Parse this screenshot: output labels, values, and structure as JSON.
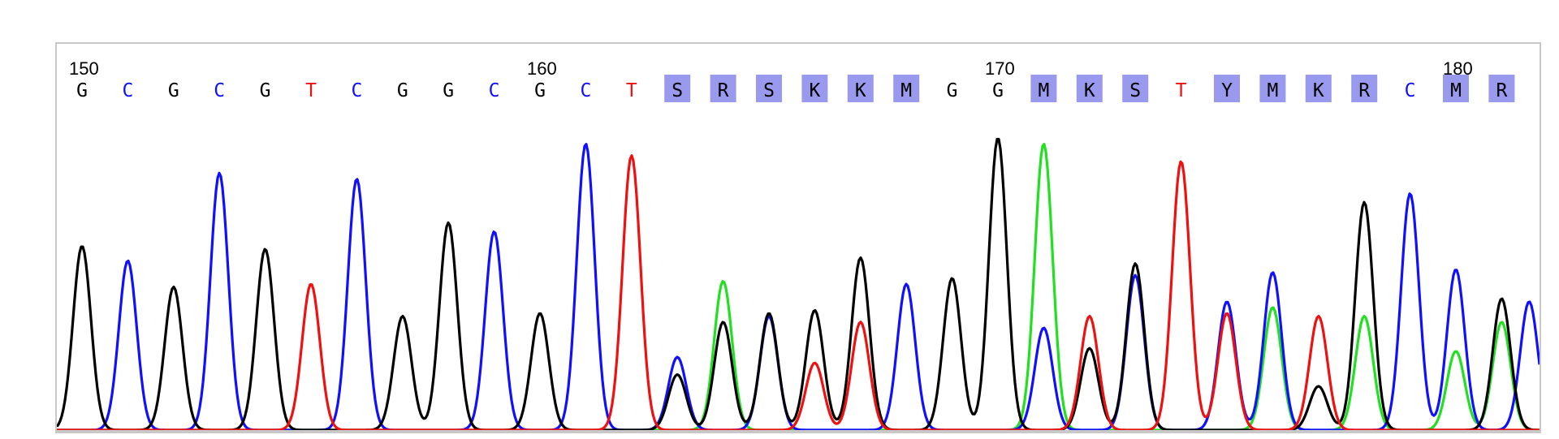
{
  "colors": {
    "A": "#20e020",
    "C": "#1010ff",
    "G": "#000000",
    "T": "#ee1111",
    "ambiguous_text": "#000000",
    "ambiguous_highlight": "#9999ee",
    "frame": "#c8c8c8"
  },
  "chart_data": {
    "type": "line",
    "title": "",
    "xlabel": "",
    "ylabel": "",
    "position_labels": [
      {
        "pos": 150,
        "text": "150"
      },
      {
        "pos": 160,
        "text": "160"
      },
      {
        "pos": 170,
        "text": "170"
      },
      {
        "pos": 180,
        "text": "180"
      }
    ],
    "sequence": [
      {
        "base": "G",
        "pos": 150,
        "ambiguous": false
      },
      {
        "base": "C",
        "pos": 151,
        "ambiguous": false
      },
      {
        "base": "G",
        "pos": 152,
        "ambiguous": false
      },
      {
        "base": "C",
        "pos": 153,
        "ambiguous": false
      },
      {
        "base": "G",
        "pos": 154,
        "ambiguous": false
      },
      {
        "base": "T",
        "pos": 155,
        "ambiguous": false
      },
      {
        "base": "C",
        "pos": 156,
        "ambiguous": false
      },
      {
        "base": "G",
        "pos": 157,
        "ambiguous": false
      },
      {
        "base": "G",
        "pos": 158,
        "ambiguous": false
      },
      {
        "base": "C",
        "pos": 159,
        "ambiguous": false
      },
      {
        "base": "G",
        "pos": 160,
        "ambiguous": false
      },
      {
        "base": "C",
        "pos": 161,
        "ambiguous": false
      },
      {
        "base": "T",
        "pos": 162,
        "ambiguous": false
      },
      {
        "base": "S",
        "pos": 163,
        "ambiguous": true
      },
      {
        "base": "R",
        "pos": 164,
        "ambiguous": true
      },
      {
        "base": "S",
        "pos": 165,
        "ambiguous": true
      },
      {
        "base": "K",
        "pos": 166,
        "ambiguous": true
      },
      {
        "base": "K",
        "pos": 167,
        "ambiguous": true
      },
      {
        "base": "M",
        "pos": 168,
        "ambiguous": true
      },
      {
        "base": "G",
        "pos": 169,
        "ambiguous": false
      },
      {
        "base": "G",
        "pos": 170,
        "ambiguous": false
      },
      {
        "base": "M",
        "pos": 171,
        "ambiguous": true
      },
      {
        "base": "K",
        "pos": 172,
        "ambiguous": true
      },
      {
        "base": "S",
        "pos": 173,
        "ambiguous": true
      },
      {
        "base": "T",
        "pos": 174,
        "ambiguous": false
      },
      {
        "base": "Y",
        "pos": 175,
        "ambiguous": true
      },
      {
        "base": "M",
        "pos": 176,
        "ambiguous": true
      },
      {
        "base": "K",
        "pos": 177,
        "ambiguous": true
      },
      {
        "base": "R",
        "pos": 178,
        "ambiguous": true
      },
      {
        "base": "C",
        "pos": 179,
        "ambiguous": false
      },
      {
        "base": "M",
        "pos": 180,
        "ambiguous": true
      },
      {
        "base": "R",
        "pos": 181,
        "ambiguous": true
      }
    ],
    "ylim": [
      0,
      100
    ],
    "traces": {
      "G": [
        {
          "pos": 150,
          "h": 63
        },
        {
          "pos": 152,
          "h": 49
        },
        {
          "pos": 154,
          "h": 62
        },
        {
          "pos": 157,
          "h": 39
        },
        {
          "pos": 158,
          "h": 71
        },
        {
          "pos": 160,
          "h": 40
        },
        {
          "pos": 163,
          "h": 19
        },
        {
          "pos": 164,
          "h": 37
        },
        {
          "pos": 165,
          "h": 40
        },
        {
          "pos": 166,
          "h": 41
        },
        {
          "pos": 167,
          "h": 59
        },
        {
          "pos": 169,
          "h": 52
        },
        {
          "pos": 170,
          "h": 100
        },
        {
          "pos": 172,
          "h": 28
        },
        {
          "pos": 173,
          "h": 57
        },
        {
          "pos": 177,
          "h": 15
        },
        {
          "pos": 178,
          "h": 78
        },
        {
          "pos": 181,
          "h": 45
        }
      ],
      "C": [
        {
          "pos": 151,
          "h": 58
        },
        {
          "pos": 153,
          "h": 88
        },
        {
          "pos": 156,
          "h": 86
        },
        {
          "pos": 159,
          "h": 68
        },
        {
          "pos": 161,
          "h": 98
        },
        {
          "pos": 163,
          "h": 25
        },
        {
          "pos": 165,
          "h": 39
        },
        {
          "pos": 168,
          "h": 50
        },
        {
          "pos": 171,
          "h": 35
        },
        {
          "pos": 173,
          "h": 53
        },
        {
          "pos": 175,
          "h": 44
        },
        {
          "pos": 176,
          "h": 54
        },
        {
          "pos": 179,
          "h": 81
        },
        {
          "pos": 180,
          "h": 55
        },
        {
          "pos": 181.6,
          "h": 44
        }
      ],
      "A": [
        {
          "pos": 164,
          "h": 51
        },
        {
          "pos": 171,
          "h": 98
        },
        {
          "pos": 176,
          "h": 42
        },
        {
          "pos": 178,
          "h": 39
        },
        {
          "pos": 180,
          "h": 27
        },
        {
          "pos": 181,
          "h": 37
        }
      ],
      "T": [
        {
          "pos": 155,
          "h": 50
        },
        {
          "pos": 162,
          "h": 94
        },
        {
          "pos": 166,
          "h": 23
        },
        {
          "pos": 167,
          "h": 37
        },
        {
          "pos": 172,
          "h": 39
        },
        {
          "pos": 174,
          "h": 92
        },
        {
          "pos": 175,
          "h": 40
        },
        {
          "pos": 177,
          "h": 39
        }
      ]
    }
  }
}
